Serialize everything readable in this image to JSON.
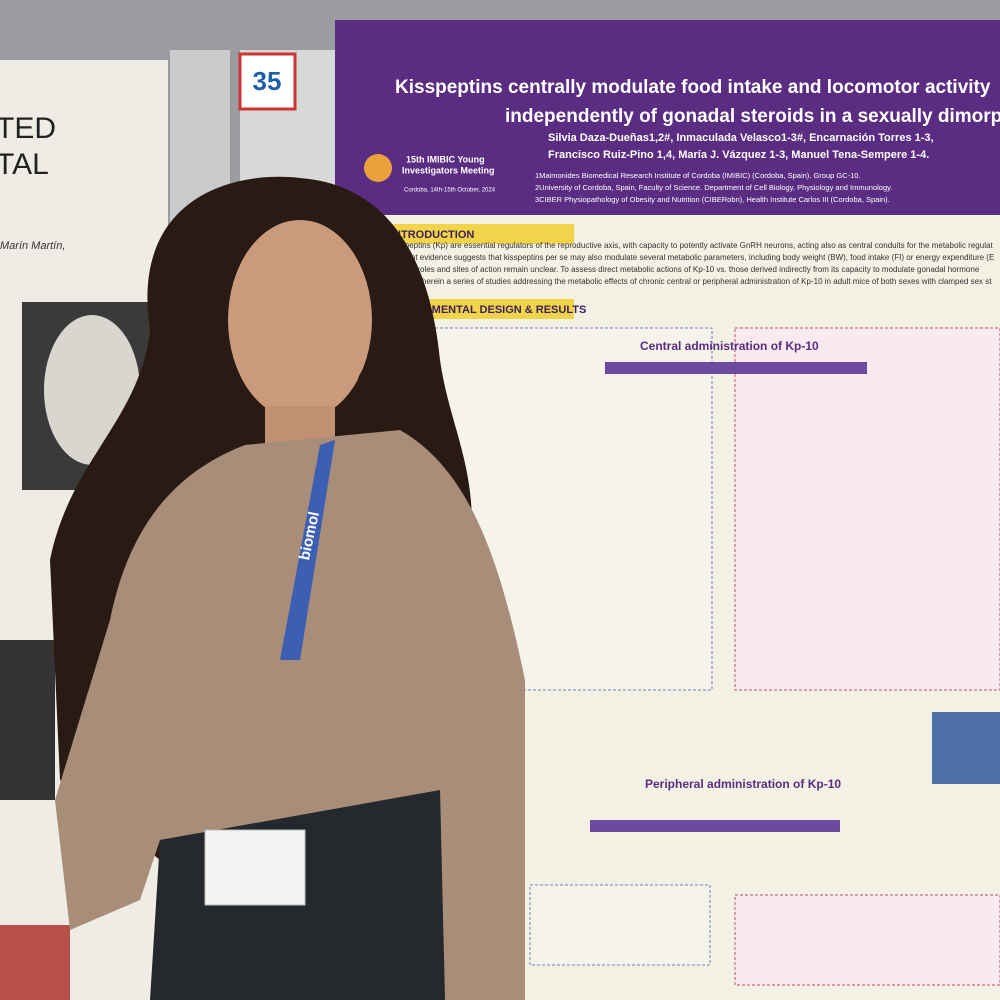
{
  "poster_number": "35",
  "left_poster": {
    "lines": [
      "TED",
      "TAL"
    ],
    "authors": "Marín Martín,"
  },
  "poster": {
    "title": [
      "Kisspeptins centrally modulate food intake and locomotor activity",
      "independently of gonadal steroids in a sexually dimorphic man"
    ],
    "authors": [
      "Silvia Daza-Dueñas1,2#, Inmaculada Velasco1-3#, Encarnación Torres 1-3,",
      "Francisco Ruiz-Pino 1,4, María J. Vázquez 1-3, Manuel Tena-Sempere 1-4."
    ],
    "affiliations": [
      "1Maimonides Biomedical Research Institute of Cordoba (IMIBIC) (Cordoba, Spain). Group GC-10.",
      "2University of Cordoba, Spain, Faculty of Science. Department of Cell Biology, Physiology and Immunology.",
      "3CIBER Physiopathology of Obesity and Nutrition (CIBERobn), Health Institute Carlos III (Cordoba, Spain)."
    ],
    "meeting": {
      "name": [
        "15th IMIBIC Young",
        "Investigators Meeting"
      ],
      "date": "Cordoba, 14th-15th October, 2024"
    },
    "sections": {
      "introduction": "INTRODUCTION",
      "results": "PERIMENTAL DESIGN & RESULTS"
    },
    "intro_text": [
      "isspeptins (Kp) are essential regulators of the reproductive axis, with capacity to potently activate GnRH neurons, acting also as central conduits for the metabolic regulat",
      "ecent evidence suggests that kisspeptins per se may also modulate several metabolic parameters, including body weight (BW), food intake (FI) or energy expenditure (E",
      "qual roles and sites of action remain unclear. To assess direct metabolic actions of Kp-10 vs. those derived indirectly from its capacity to modulate gonadal hormone",
      "ment herein a series of studies addressing the metabolic effects of chronic central or peripheral administration of Kp-10 in adult mice of both sexes with clamped sex st"
    ],
    "panels": {
      "central": "Central administration of Kp-10",
      "peripheral": "Peripheral administration of Kp-10"
    }
  },
  "lanyard": "biomol"
}
